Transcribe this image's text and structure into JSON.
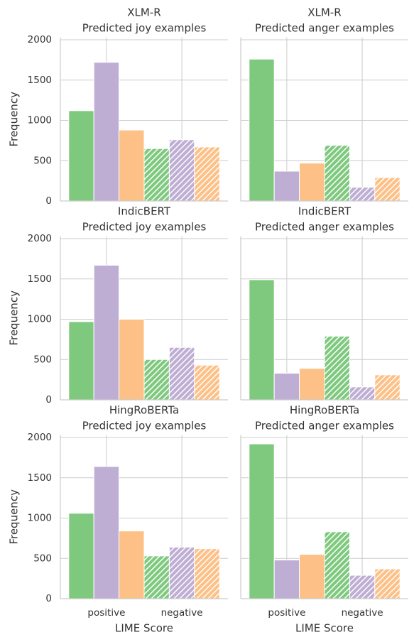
{
  "chart_data": [
    {
      "type": "bar",
      "title": "XLM-R\nPredicted joy examples",
      "ylabel": "Frequency",
      "categories": [
        null,
        null
      ],
      "hatch": [
        null,
        "//"
      ],
      "series": [
        {
          "color": "#7fc97f",
          "values": [
            1120,
            650
          ]
        },
        {
          "color": "#beaed4",
          "values": [
            1720,
            760
          ]
        },
        {
          "color": "#fdc086",
          "values": [
            880,
            670
          ]
        }
      ],
      "ylim": [
        0,
        2030
      ],
      "yticks": [
        0,
        500,
        1000,
        1500,
        2000
      ],
      "ytick_labels": true,
      "grid": true
    },
    {
      "type": "bar",
      "title": "XLM-R\nPredicted anger examples",
      "categories": [
        null,
        null
      ],
      "hatch": [
        null,
        "//"
      ],
      "series": [
        {
          "color": "#7fc97f",
          "values": [
            1760,
            690
          ]
        },
        {
          "color": "#beaed4",
          "values": [
            370,
            170
          ]
        },
        {
          "color": "#fdc086",
          "values": [
            470,
            290
          ]
        }
      ],
      "ylim": [
        0,
        2030
      ],
      "yticks": [
        0,
        500,
        1000,
        1500,
        2000
      ],
      "ytick_labels": false,
      "grid": true
    },
    {
      "type": "bar",
      "title": "IndicBERT\nPredicted joy examples",
      "ylabel": "Frequency",
      "categories": [
        null,
        null
      ],
      "hatch": [
        null,
        "//"
      ],
      "series": [
        {
          "color": "#7fc97f",
          "values": [
            970,
            500
          ]
        },
        {
          "color": "#beaed4",
          "values": [
            1670,
            650
          ]
        },
        {
          "color": "#fdc086",
          "values": [
            1000,
            430
          ]
        }
      ],
      "ylim": [
        0,
        2030
      ],
      "yticks": [
        0,
        500,
        1000,
        1500,
        2000
      ],
      "ytick_labels": true,
      "grid": true
    },
    {
      "type": "bar",
      "title": "IndicBERT\nPredicted anger examples",
      "categories": [
        null,
        null
      ],
      "hatch": [
        null,
        "//"
      ],
      "series": [
        {
          "color": "#7fc97f",
          "values": [
            1490,
            790
          ]
        },
        {
          "color": "#beaed4",
          "values": [
            330,
            160
          ]
        },
        {
          "color": "#fdc086",
          "values": [
            390,
            310
          ]
        }
      ],
      "ylim": [
        0,
        2030
      ],
      "yticks": [
        0,
        500,
        1000,
        1500,
        2000
      ],
      "ytick_labels": false,
      "grid": true
    },
    {
      "type": "bar",
      "title": "HingRoBERTa\nPredicted joy examples",
      "ylabel": "Frequency",
      "xlabel": "LIME Score",
      "categories": [
        "positive",
        "negative"
      ],
      "hatch": [
        null,
        "//"
      ],
      "series": [
        {
          "color": "#7fc97f",
          "values": [
            1060,
            530
          ]
        },
        {
          "color": "#beaed4",
          "values": [
            1640,
            640
          ]
        },
        {
          "color": "#fdc086",
          "values": [
            840,
            620
          ]
        }
      ],
      "ylim": [
        0,
        2030
      ],
      "yticks": [
        0,
        500,
        1000,
        1500,
        2000
      ],
      "ytick_labels": true,
      "grid": true
    },
    {
      "type": "bar",
      "title": "HingRoBERTa\nPredicted anger examples",
      "xlabel": "LIME Score",
      "categories": [
        "positive",
        "negative"
      ],
      "hatch": [
        null,
        "//"
      ],
      "series": [
        {
          "color": "#7fc97f",
          "values": [
            1920,
            830
          ]
        },
        {
          "color": "#beaed4",
          "values": [
            480,
            290
          ]
        },
        {
          "color": "#fdc086",
          "values": [
            550,
            370
          ]
        }
      ],
      "ylim": [
        0,
        2030
      ],
      "yticks": [
        0,
        500,
        1000,
        1500,
        2000
      ],
      "ytick_labels": false,
      "grid": true
    }
  ]
}
